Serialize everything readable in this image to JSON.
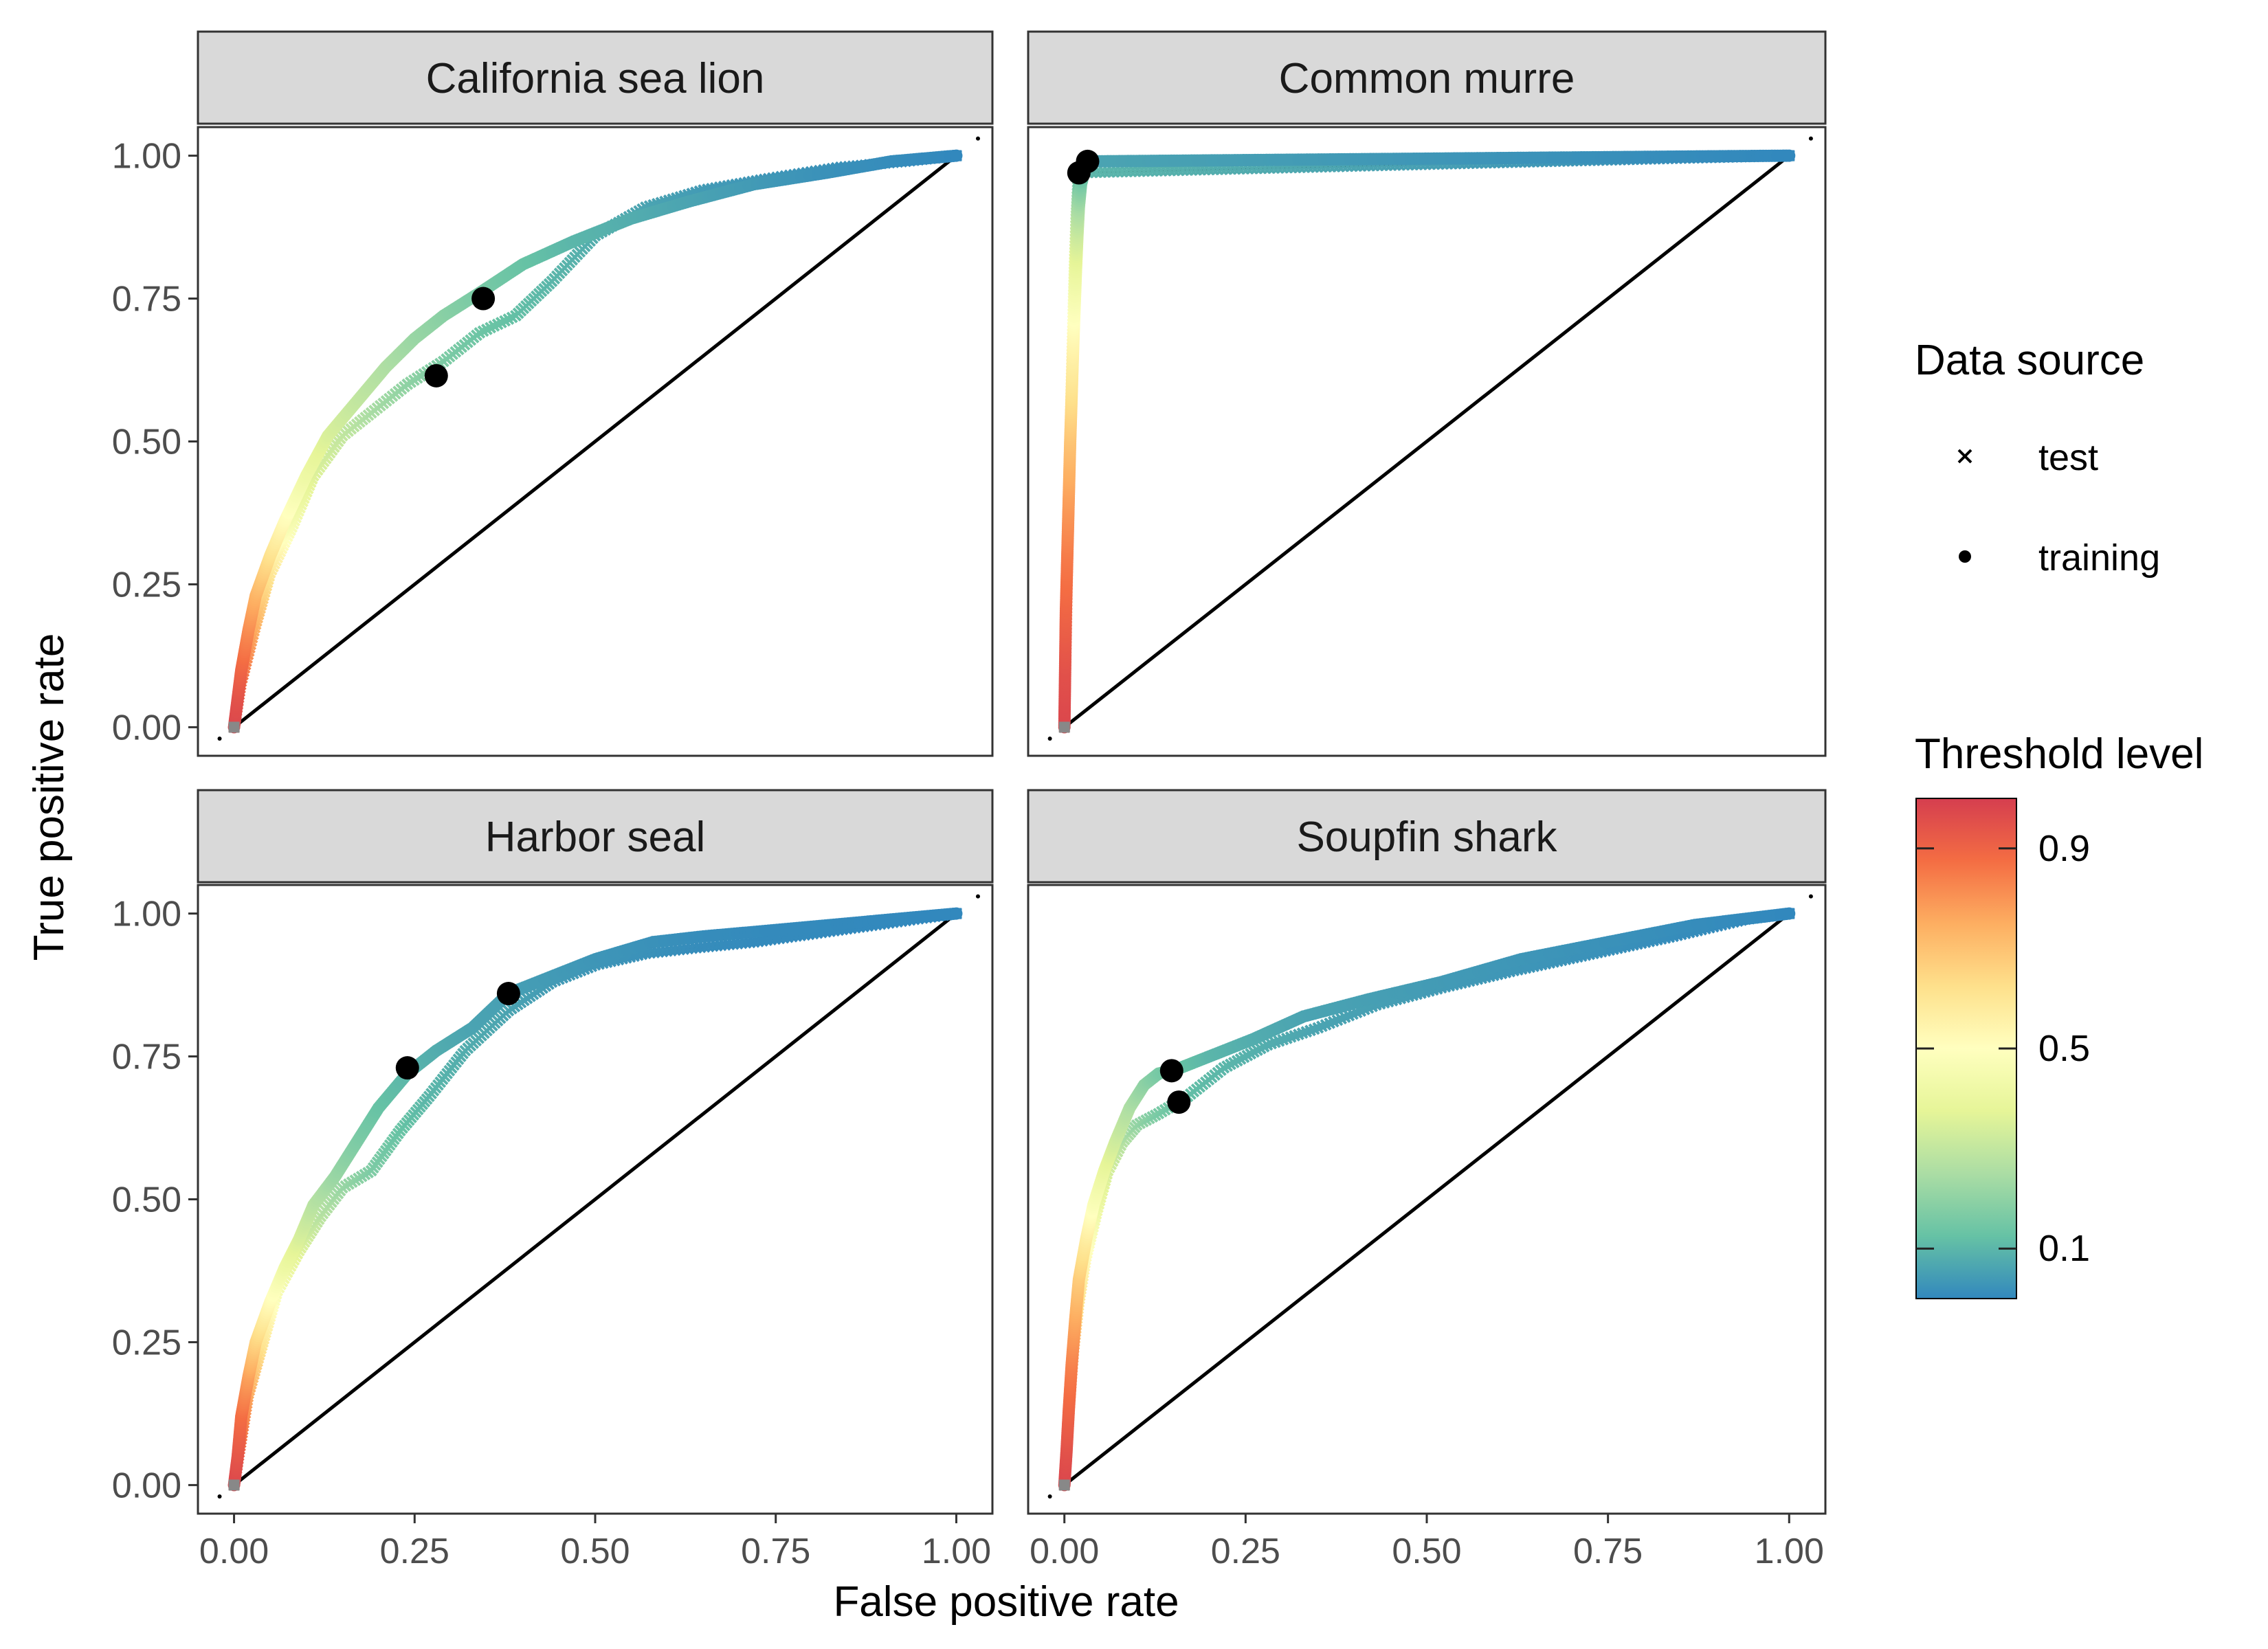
{
  "chart_data": {
    "type": "line",
    "xlabel": "False positive rate",
    "ylabel": "True positive rate",
    "xlim": [
      -0.05,
      1.05
    ],
    "ylim": [
      -0.05,
      1.05
    ],
    "ticks": [
      0,
      0.25,
      0.5,
      0.75,
      1
    ],
    "tick_labels": [
      "0.00",
      "0.25",
      "0.50",
      "0.75",
      "1.00"
    ],
    "grid": false,
    "legend": {
      "shape": {
        "title": "Data source",
        "entries": [
          {
            "label": "test",
            "marker": "cross"
          },
          {
            "label": "training",
            "marker": "dot"
          }
        ]
      },
      "color": {
        "title": "Threshold level",
        "palette": [
          "#3288bd",
          "#66c2a5",
          "#abdda4",
          "#e6f598",
          "#ffffbf",
          "#fee08b",
          "#fdae61",
          "#f46d43",
          "#d53e4f"
        ],
        "range": [
          0.0,
          1.0
        ],
        "ticks": [
          0.1,
          0.5,
          0.9
        ],
        "tick_labels": [
          "0.1",
          "0.5",
          "0.9"
        ]
      }
    },
    "panels": [
      {
        "title": "California sea lion",
        "training": {
          "fpr": [
            0,
            0.005,
            0.01,
            0.02,
            0.03,
            0.05,
            0.07,
            0.1,
            0.13,
            0.17,
            0.21,
            0.25,
            0.29,
            0.34,
            0.4,
            0.47,
            0.55,
            0.63,
            0.72,
            0.82,
            0.91,
            1.0
          ],
          "tpr": [
            0,
            0.05,
            0.1,
            0.17,
            0.23,
            0.3,
            0.36,
            0.44,
            0.51,
            0.57,
            0.63,
            0.68,
            0.72,
            0.76,
            0.81,
            0.85,
            0.89,
            0.92,
            0.95,
            0.97,
            0.99,
            1.0
          ],
          "threshold": [
            0.98,
            0.95,
            0.9,
            0.82,
            0.74,
            0.62,
            0.52,
            0.42,
            0.35,
            0.3,
            0.26,
            0.22,
            0.19,
            0.16,
            0.13,
            0.1,
            0.08,
            0.06,
            0.04,
            0.02,
            0.01,
            0.0
          ],
          "optimal": {
            "fpr": 0.345,
            "tpr": 0.75
          }
        },
        "test": {
          "fpr": [
            0,
            0.01,
            0.03,
            0.05,
            0.08,
            0.11,
            0.15,
            0.19,
            0.24,
            0.29,
            0.34,
            0.39,
            0.44,
            0.5,
            0.57,
            0.65,
            0.74,
            0.84,
            0.93,
            1.0
          ],
          "tpr": [
            0,
            0.08,
            0.18,
            0.27,
            0.35,
            0.44,
            0.51,
            0.55,
            0.6,
            0.64,
            0.69,
            0.72,
            0.78,
            0.86,
            0.91,
            0.94,
            0.96,
            0.98,
            0.99,
            1.0
          ],
          "threshold": [
            0.96,
            0.88,
            0.74,
            0.6,
            0.46,
            0.36,
            0.3,
            0.25,
            0.2,
            0.17,
            0.14,
            0.12,
            0.1,
            0.08,
            0.06,
            0.04,
            0.03,
            0.02,
            0.01,
            0.0
          ],
          "optimal": {
            "fpr": 0.28,
            "tpr": 0.615
          }
        }
      },
      {
        "title": "Common murre",
        "training": {
          "fpr": [
            0,
            0.001,
            0.002,
            0.004,
            0.006,
            0.008,
            0.01,
            0.012,
            0.014,
            0.016,
            0.018,
            0.02,
            0.023,
            0.027,
            0.032,
            1.0
          ],
          "tpr": [
            0,
            0.1,
            0.2,
            0.3,
            0.4,
            0.5,
            0.58,
            0.66,
            0.73,
            0.8,
            0.86,
            0.91,
            0.95,
            0.97,
            0.99,
            1.0
          ],
          "threshold": [
            0.98,
            0.95,
            0.9,
            0.85,
            0.78,
            0.7,
            0.62,
            0.55,
            0.48,
            0.4,
            0.32,
            0.24,
            0.16,
            0.1,
            0.06,
            0.0
          ],
          "optimal": {
            "fpr": 0.032,
            "tpr": 0.99
          }
        },
        "test": {
          "fpr": [
            0,
            0.002,
            0.004,
            0.006,
            0.008,
            0.01,
            0.012,
            0.014,
            0.016,
            0.018,
            0.02,
            1.0
          ],
          "tpr": [
            0,
            0.12,
            0.26,
            0.4,
            0.52,
            0.63,
            0.73,
            0.82,
            0.89,
            0.94,
            0.97,
            1.0
          ],
          "threshold": [
            0.97,
            0.92,
            0.86,
            0.78,
            0.68,
            0.58,
            0.48,
            0.38,
            0.28,
            0.18,
            0.1,
            0.0
          ],
          "optimal": {
            "fpr": 0.02,
            "tpr": 0.97
          }
        }
      },
      {
        "title": "Harbor seal",
        "training": {
          "fpr": [
            0,
            0.005,
            0.01,
            0.02,
            0.03,
            0.05,
            0.07,
            0.09,
            0.11,
            0.14,
            0.17,
            0.2,
            0.24,
            0.28,
            0.33,
            0.38,
            0.44,
            0.5,
            0.58,
            0.65,
            0.74,
            1.0
          ],
          "tpr": [
            0,
            0.05,
            0.12,
            0.19,
            0.25,
            0.32,
            0.38,
            0.43,
            0.49,
            0.54,
            0.6,
            0.66,
            0.72,
            0.76,
            0.8,
            0.86,
            0.89,
            0.92,
            0.95,
            0.96,
            0.97,
            1.0
          ],
          "threshold": [
            0.98,
            0.94,
            0.88,
            0.78,
            0.66,
            0.52,
            0.42,
            0.35,
            0.28,
            0.22,
            0.17,
            0.13,
            0.1,
            0.08,
            0.06,
            0.05,
            0.04,
            0.03,
            0.02,
            0.01,
            0.005,
            0.0
          ],
          "optimal": {
            "fpr": 0.38,
            "tpr": 0.86
          }
        },
        "test": {
          "fpr": [
            0,
            0.01,
            0.02,
            0.04,
            0.06,
            0.09,
            0.12,
            0.15,
            0.19,
            0.23,
            0.27,
            0.32,
            0.38,
            0.44,
            0.5,
            0.57,
            0.64,
            0.72,
            1.0
          ],
          "tpr": [
            0,
            0.08,
            0.16,
            0.25,
            0.34,
            0.41,
            0.47,
            0.52,
            0.55,
            0.62,
            0.68,
            0.76,
            0.83,
            0.88,
            0.91,
            0.93,
            0.94,
            0.95,
            1.0
          ],
          "threshold": [
            0.96,
            0.88,
            0.76,
            0.6,
            0.46,
            0.36,
            0.28,
            0.22,
            0.17,
            0.13,
            0.1,
            0.08,
            0.06,
            0.04,
            0.03,
            0.02,
            0.01,
            0.005,
            0.0
          ],
          "optimal": {
            "fpr": 0.24,
            "tpr": 0.73
          }
        }
      },
      {
        "title": "Soupfin shark",
        "training": {
          "fpr": [
            0,
            0.003,
            0.006,
            0.01,
            0.015,
            0.02,
            0.03,
            0.04,
            0.055,
            0.07,
            0.09,
            0.11,
            0.13,
            0.16,
            0.2,
            0.26,
            0.33,
            0.42,
            0.52,
            0.63,
            0.75,
            0.87,
            1.0
          ],
          "tpr": [
            0,
            0.06,
            0.13,
            0.21,
            0.29,
            0.36,
            0.43,
            0.49,
            0.55,
            0.6,
            0.66,
            0.7,
            0.72,
            0.73,
            0.75,
            0.78,
            0.82,
            0.85,
            0.88,
            0.92,
            0.95,
            0.98,
            1.0
          ],
          "threshold": [
            0.98,
            0.95,
            0.9,
            0.84,
            0.76,
            0.68,
            0.58,
            0.48,
            0.4,
            0.33,
            0.26,
            0.2,
            0.16,
            0.13,
            0.1,
            0.08,
            0.06,
            0.05,
            0.04,
            0.03,
            0.02,
            0.01,
            0.0
          ],
          "optimal": {
            "fpr": 0.148,
            "tpr": 0.725
          }
        },
        "test": {
          "fpr": [
            0,
            0.004,
            0.008,
            0.013,
            0.02,
            0.03,
            0.045,
            0.06,
            0.08,
            0.1,
            0.13,
            0.17,
            0.22,
            0.28,
            0.35,
            0.43,
            0.52,
            0.62,
            0.73,
            0.84,
            0.94,
            1.0
          ],
          "tpr": [
            0,
            0.08,
            0.16,
            0.24,
            0.32,
            0.4,
            0.48,
            0.55,
            0.6,
            0.63,
            0.65,
            0.68,
            0.73,
            0.77,
            0.8,
            0.84,
            0.87,
            0.9,
            0.93,
            0.96,
            0.99,
            1.0
          ],
          "threshold": [
            0.96,
            0.9,
            0.82,
            0.72,
            0.62,
            0.52,
            0.42,
            0.34,
            0.27,
            0.21,
            0.16,
            0.12,
            0.1,
            0.08,
            0.06,
            0.05,
            0.04,
            0.03,
            0.02,
            0.01,
            0.005,
            0.0
          ],
          "optimal": {
            "fpr": 0.158,
            "tpr": 0.67
          }
        }
      }
    ]
  }
}
